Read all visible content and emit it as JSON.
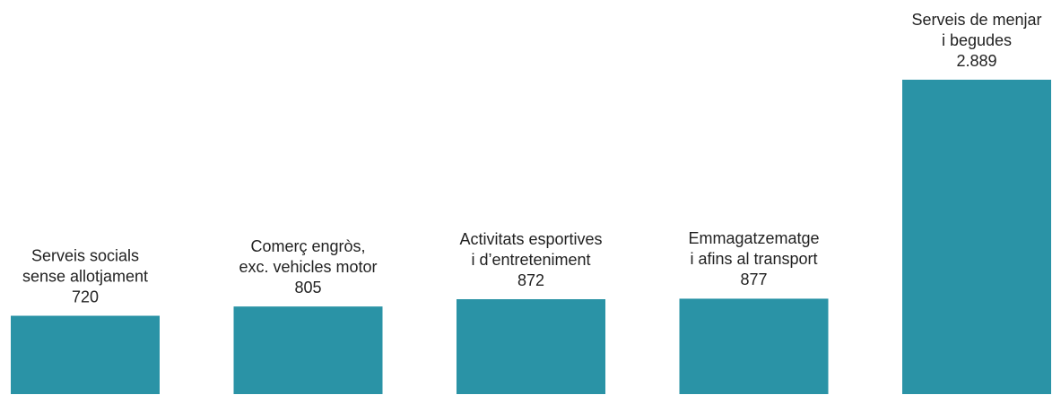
{
  "chart_data": {
    "type": "bar",
    "categories": [
      [
        "Serveis socials",
        "sense allotjament"
      ],
      [
        "Comerç engròs,",
        "exc. vehicles motor"
      ],
      [
        "Activitats esportives",
        "i d’entreteniment"
      ],
      [
        "Emmagatzematge",
        "i afins al transport"
      ],
      [
        "Serveis de menjar",
        "i begudes"
      ]
    ],
    "values": [
      720,
      805,
      872,
      877,
      2889
    ],
    "value_labels": [
      "720",
      "805",
      "872",
      "877",
      "2.889"
    ],
    "color": "#2a93a6"
  }
}
